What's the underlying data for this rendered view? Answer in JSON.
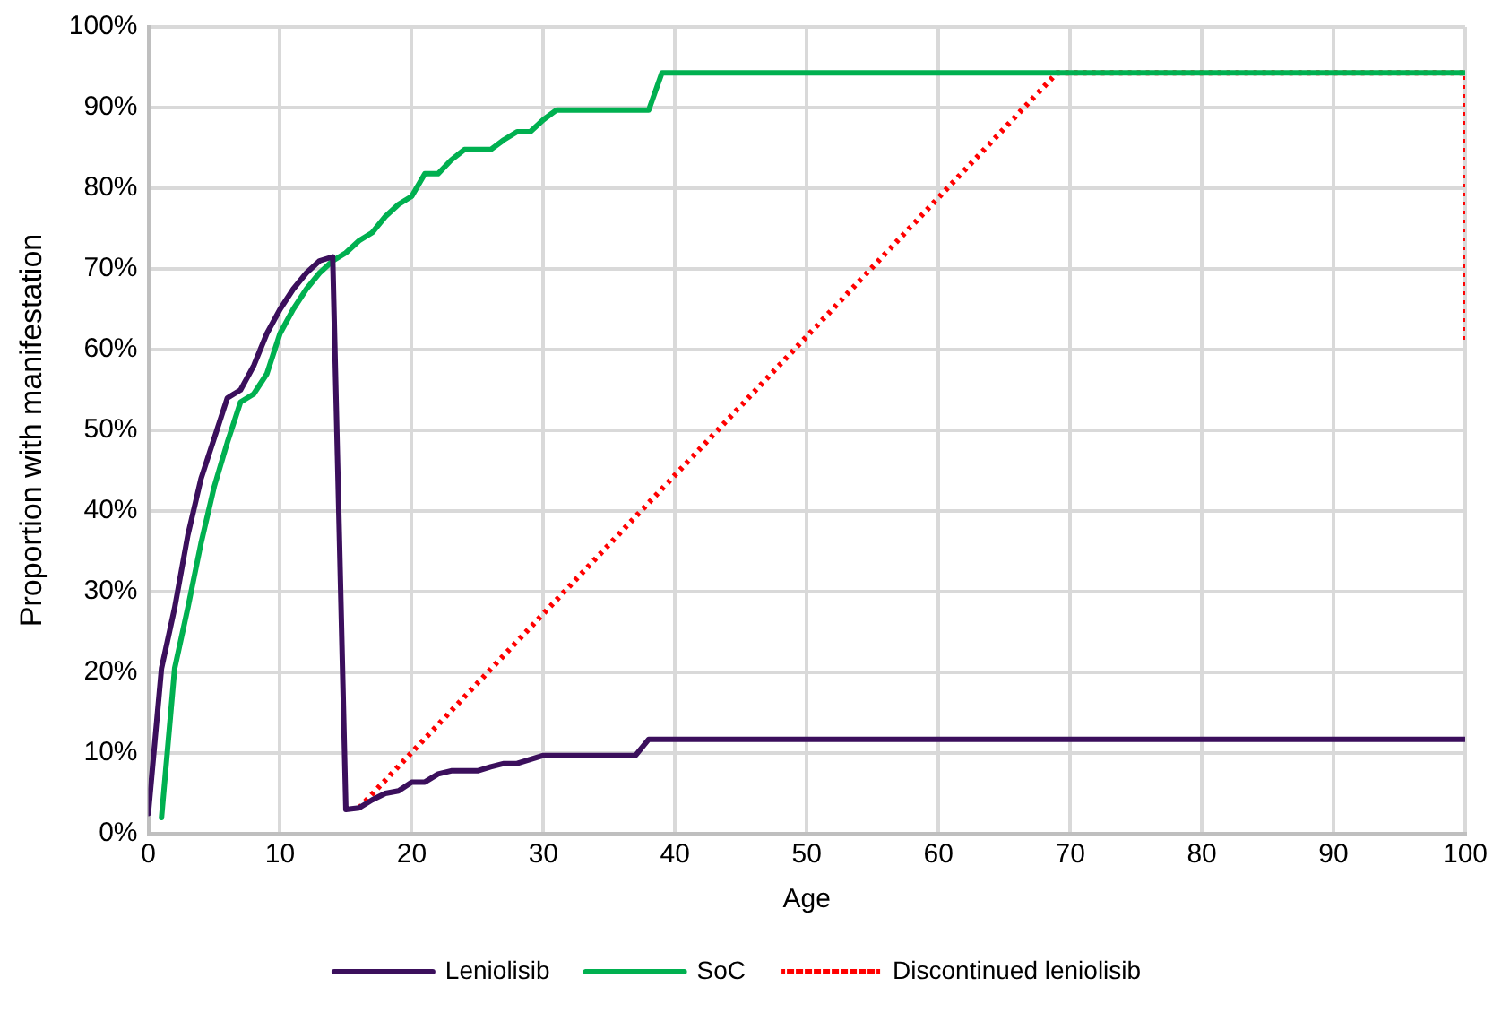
{
  "chart_data": {
    "type": "line",
    "xlabel": "Age",
    "ylabel": "Proportion with manifestation",
    "xlim": [
      0,
      100
    ],
    "xticks": [
      0,
      10,
      20,
      30,
      40,
      50,
      60,
      70,
      80,
      90,
      100
    ],
    "ylim": [
      0,
      100
    ],
    "yticks": [
      {
        "value": 0,
        "label": "0%"
      },
      {
        "value": 10,
        "label": "10%"
      },
      {
        "value": 20,
        "label": "20%"
      },
      {
        "value": 30,
        "label": "30%"
      },
      {
        "value": 40,
        "label": "40%"
      },
      {
        "value": 50,
        "label": "50%"
      },
      {
        "value": 60,
        "label": "60%"
      },
      {
        "value": 70,
        "label": "70%"
      },
      {
        "value": 80,
        "label": "80%"
      },
      {
        "value": 90,
        "label": "90%"
      },
      {
        "value": 100,
        "label": "100%"
      }
    ],
    "grid": true,
    "legend": "bottom",
    "marker": "none",
    "series": [
      {
        "name": "Leniolisib",
        "color": "#3b0f5c",
        "line_style": "solid",
        "x": [
          0,
          1,
          2,
          3,
          4,
          5,
          6,
          7,
          8,
          9,
          10,
          11,
          12,
          13,
          14,
          15,
          16,
          17,
          18,
          19,
          20,
          21,
          22,
          23,
          24,
          25,
          26,
          27,
          28,
          29,
          30,
          37,
          38,
          100
        ],
        "values": [
          2.5,
          20.5,
          28,
          37,
          44,
          49,
          54,
          55,
          58,
          62,
          65,
          67.5,
          69.5,
          71,
          71.5,
          3,
          3.2,
          4.2,
          5,
          5.3,
          6.4,
          6.4,
          7.4,
          7.8,
          7.8,
          7.8,
          8.3,
          8.7,
          8.7,
          9.2,
          9.7,
          9.7,
          11.7,
          11.7
        ]
      },
      {
        "name": "SoC",
        "color": "#00b050",
        "line_style": "solid",
        "x": [
          1,
          2,
          3,
          4,
          5,
          6,
          7,
          8,
          9,
          10,
          11,
          12,
          13,
          14,
          15,
          16,
          17,
          18,
          19,
          20,
          21,
          22,
          23,
          24,
          25,
          26,
          27,
          28,
          29,
          30,
          31,
          38,
          39,
          100
        ],
        "values": [
          2,
          20.5,
          28,
          36,
          43,
          48.5,
          53.5,
          54.5,
          57,
          62,
          65,
          67.5,
          69.5,
          71,
          72,
          73.5,
          74.5,
          76.5,
          78,
          79,
          81.8,
          81.8,
          83.5,
          84.8,
          84.8,
          84.8,
          86,
          87,
          87,
          88.5,
          89.7,
          89.7,
          94.3,
          94.3
        ]
      },
      {
        "name": "Discontinued leniolisib",
        "color": "#ff0000",
        "line_style": "dotted",
        "x": [
          16,
          69,
          100,
          100
        ],
        "values": [
          3.2,
          94.3,
          94.3,
          61
        ]
      }
    ]
  }
}
